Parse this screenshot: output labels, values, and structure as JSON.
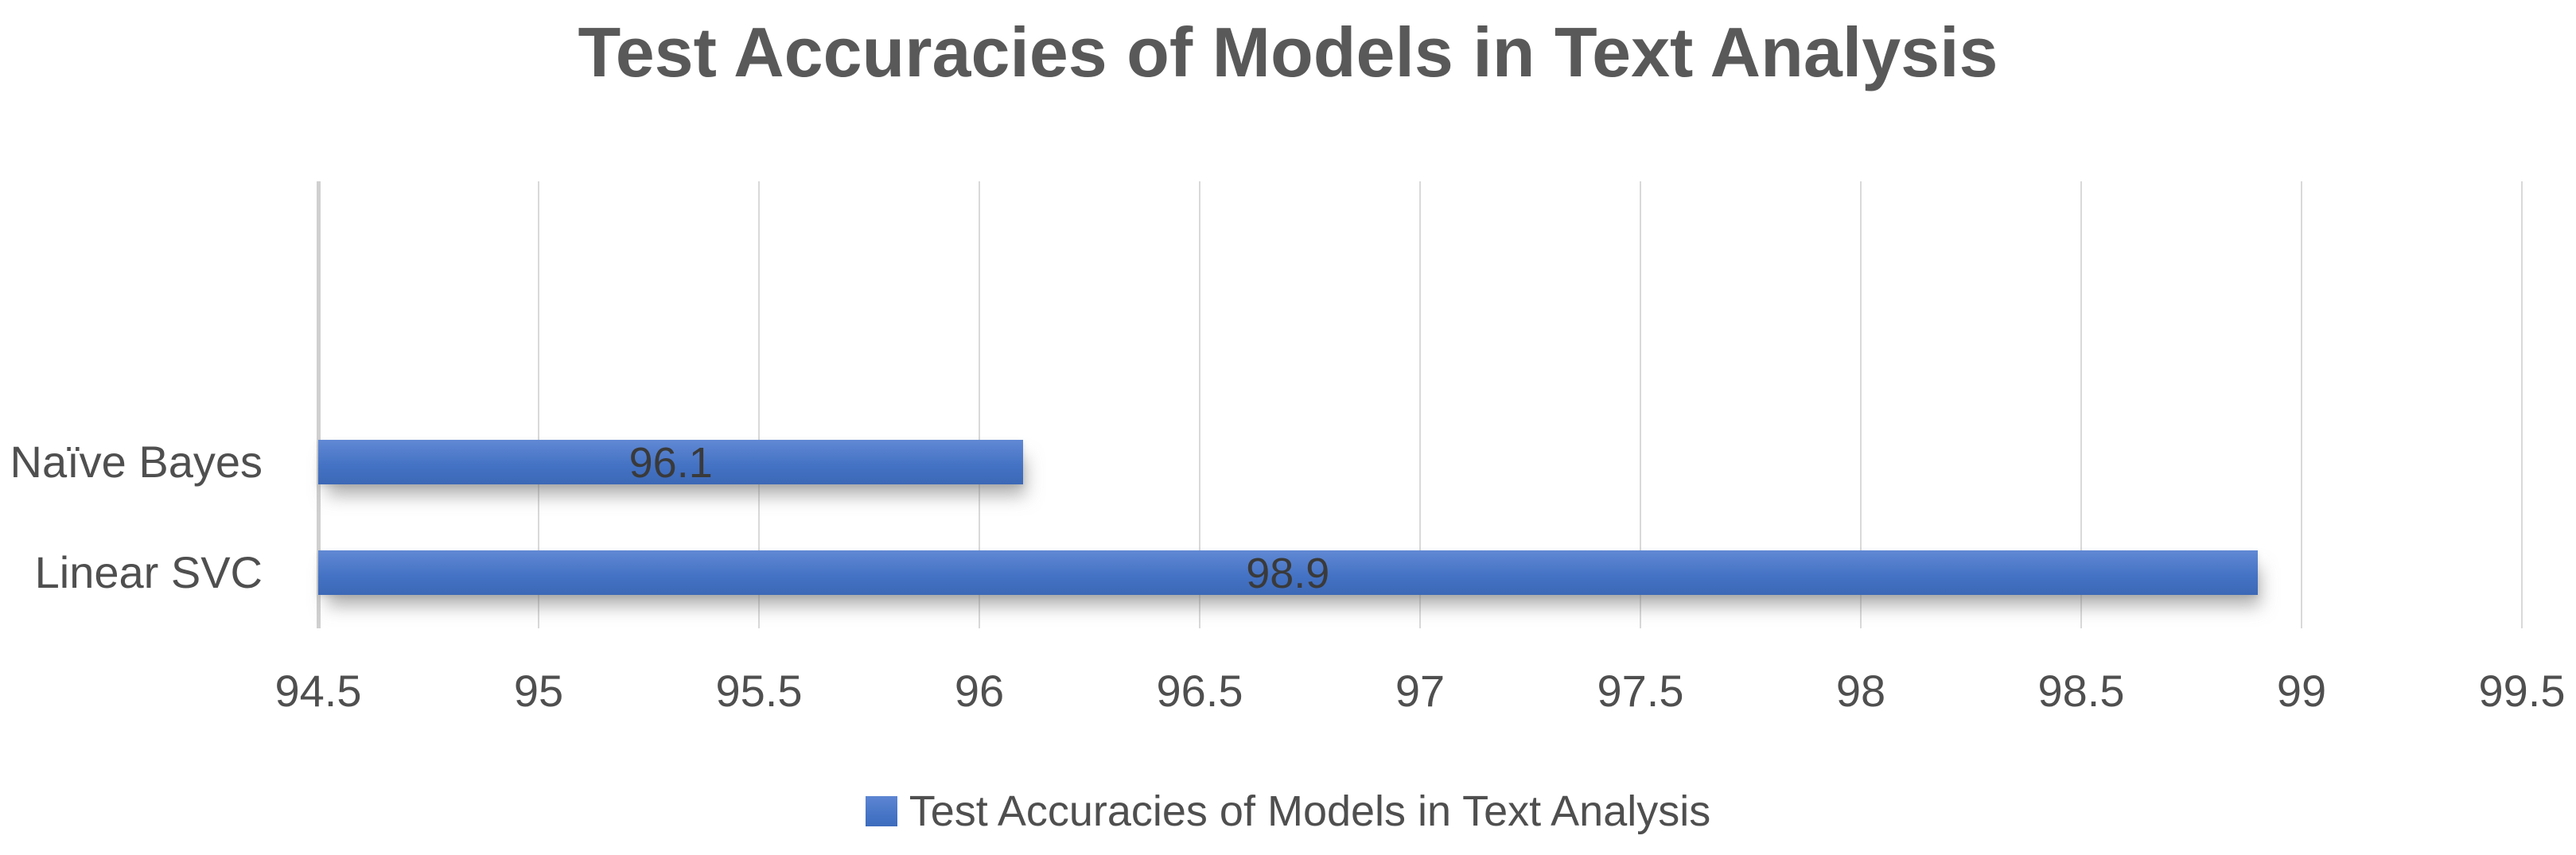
{
  "title": "Test Accuracies of Models in Text Analysis",
  "legend": {
    "label": "Test Accuracies of Models in Text Analysis",
    "marker": "legend-color-swatch"
  },
  "colors": {
    "bar": "#4472C4",
    "bar_gradient_top": "#6189D4",
    "bar_gradient_bottom": "#3C68B6",
    "gridline": "#D9D9D9",
    "axis_line": "#D0D0D0",
    "title_text": "#595959",
    "axis_text": "#4F4F4F",
    "data_label_text": "#3A3A3A"
  },
  "chart_data": {
    "type": "bar",
    "orientation": "horizontal",
    "title": "Test Accuracies of Models in Text Analysis",
    "categories": [
      "Naïve Bayes",
      "Linear SVC"
    ],
    "values": [
      96.1,
      98.9
    ],
    "data_labels": [
      "96.1",
      "98.9"
    ],
    "xlabel": "",
    "ylabel": "",
    "xlim": [
      94.5,
      99.5
    ],
    "xticks": [
      94.5,
      95,
      95.5,
      96,
      96.5,
      97,
      97.5,
      98,
      98.5,
      99,
      99.5
    ],
    "xtick_labels": [
      "94.5",
      "95",
      "95.5",
      "96",
      "96.5",
      "97",
      "97.5",
      "98",
      "98.5",
      "99",
      "99.5"
    ],
    "grid": true,
    "legend_position": "bottom",
    "data_label_position": "center-inside",
    "bar_center_fractions": [
      0.628,
      0.876
    ],
    "bar_thickness_px": 56
  }
}
